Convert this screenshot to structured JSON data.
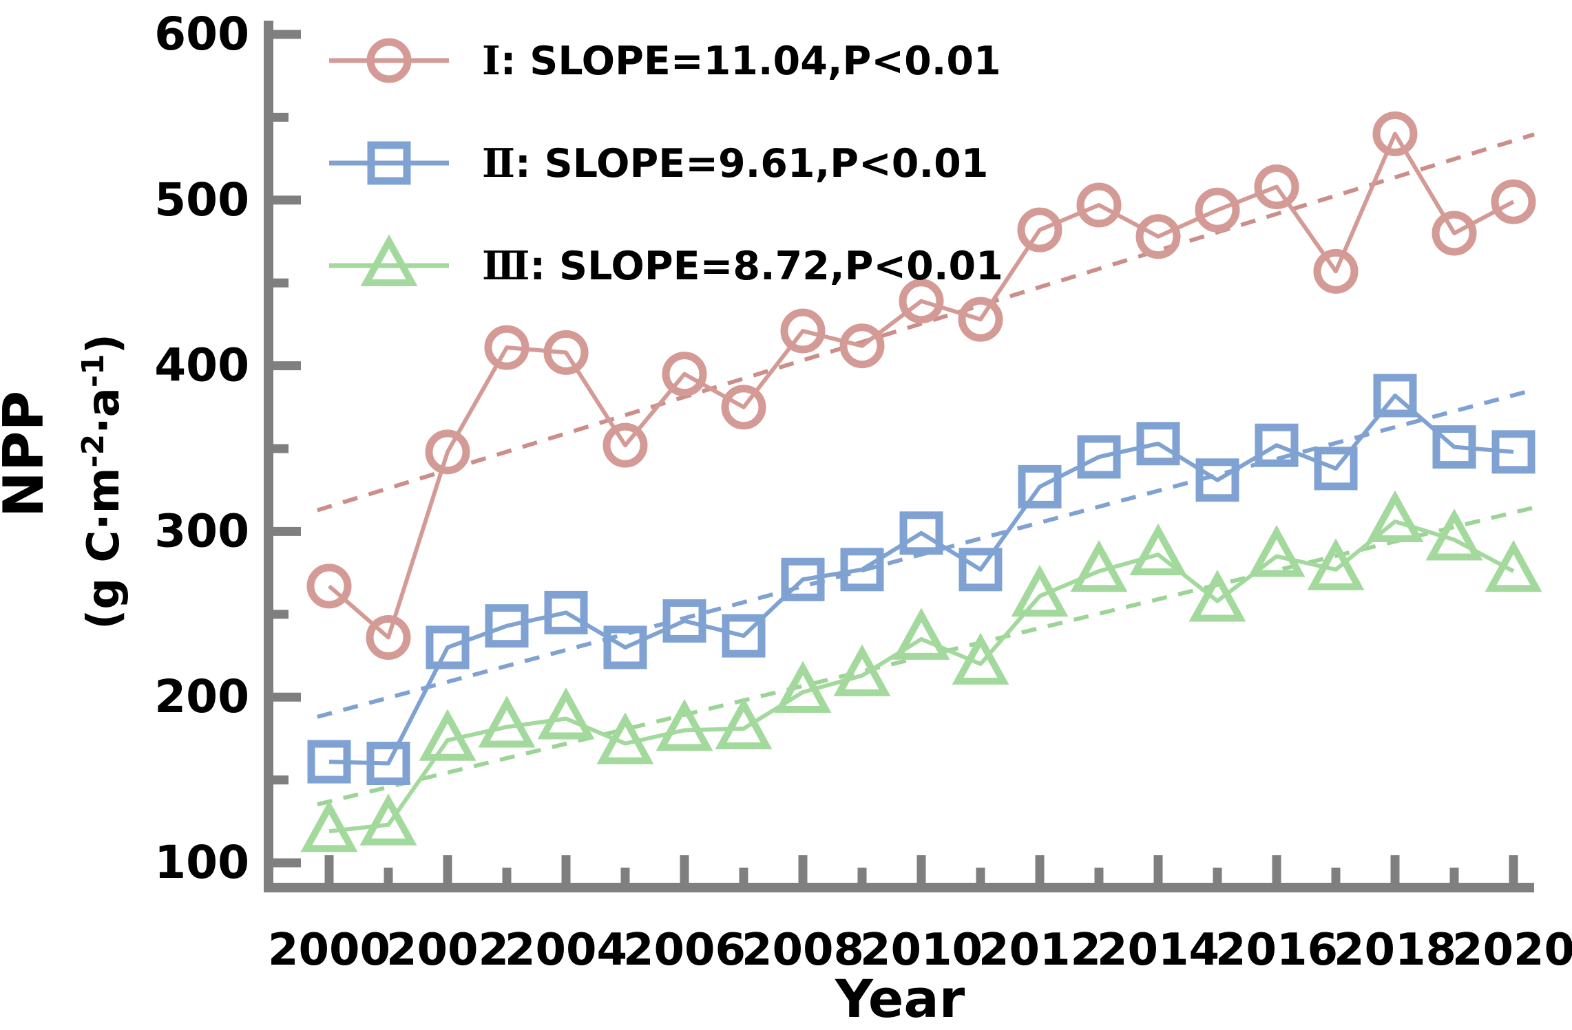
{
  "figure": {
    "background": "#ffffff",
    "axis_color": "#7f7f7f",
    "text_color": "#000000"
  },
  "chart_data": {
    "type": "line",
    "title": "",
    "xlabel": "Year",
    "ylabel": "NPP",
    "ylabel_unit": "(g C·m⁻²·a⁻¹)",
    "ylabel_unit_parts": [
      {
        "t": "(g C·m"
      },
      {
        "t": "-2",
        "sup": true
      },
      {
        "t": "·a"
      },
      {
        "t": "-1",
        "sup": true
      },
      {
        "t": ")"
      }
    ],
    "xlim": [
      2000,
      2020
    ],
    "ylim": [
      100,
      600
    ],
    "grid": false,
    "legend_position": "top-left",
    "x_ticks_major": [
      2000,
      2002,
      2004,
      2006,
      2008,
      2010,
      2012,
      2014,
      2016,
      2018,
      2020
    ],
    "x_ticks_minor": [
      2001,
      2003,
      2005,
      2007,
      2009,
      2011,
      2013,
      2015,
      2017,
      2019
    ],
    "y_ticks_major": [
      100,
      200,
      300,
      400,
      500,
      600
    ],
    "y_ticks_minor": [
      150,
      250,
      350,
      450,
      550
    ],
    "x": [
      2000,
      2001,
      2002,
      2003,
      2004,
      2005,
      2006,
      2007,
      2008,
      2009,
      2010,
      2011,
      2012,
      2013,
      2014,
      2015,
      2016,
      2017,
      2018,
      2019,
      2020
    ],
    "series": [
      {
        "name": "Ⅰ",
        "legend_numeral": "Ⅰ",
        "legend_rest": ": SLOPE=11.04,P<0.01",
        "legend_label": "Ⅰ: SLOPE=11.04,P<0.01",
        "slope": 11.04,
        "p_text": "P<0.01",
        "marker": "circle",
        "color": "#d49b96",
        "trend_color": "#cc8e89",
        "values": [
          267,
          236,
          348,
          411,
          408,
          352,
          395,
          375,
          421,
          412,
          439,
          428,
          482,
          497,
          478,
          494,
          508,
          457,
          540,
          480,
          499
        ],
        "trend_value_2000": 315
      },
      {
        "name": "Ⅱ",
        "legend_numeral": "Ⅱ",
        "legend_rest": ": SLOPE=9.61,P<0.01",
        "legend_label": "Ⅱ: SLOPE=9.61,P<0.01",
        "slope": 9.61,
        "p_text": "P<0.01",
        "marker": "square",
        "color": "#7fa2d3",
        "trend_color": "#7fa2d3",
        "values": [
          161,
          160,
          230,
          243,
          251,
          230,
          246,
          237,
          271,
          277,
          299,
          277,
          327,
          345,
          353,
          331,
          352,
          338,
          382,
          351,
          348
        ],
        "trend_value_2000": 190
      },
      {
        "name": "Ⅲ",
        "legend_numeral": "Ⅲ",
        "legend_rest": ": SLOPE=8.72,P<0.01",
        "legend_label": "Ⅲ: SLOPE=8.72,P<0.01",
        "slope": 8.72,
        "p_text": "P<0.01",
        "marker": "triangle",
        "color": "#a3d99d",
        "trend_color": "#9cd496",
        "values": [
          119,
          123,
          174,
          182,
          187,
          172,
          180,
          181,
          203,
          213,
          235,
          220,
          261,
          276,
          286,
          258,
          285,
          277,
          306,
          295,
          276
        ],
        "trend_value_2000": 137
      }
    ]
  }
}
